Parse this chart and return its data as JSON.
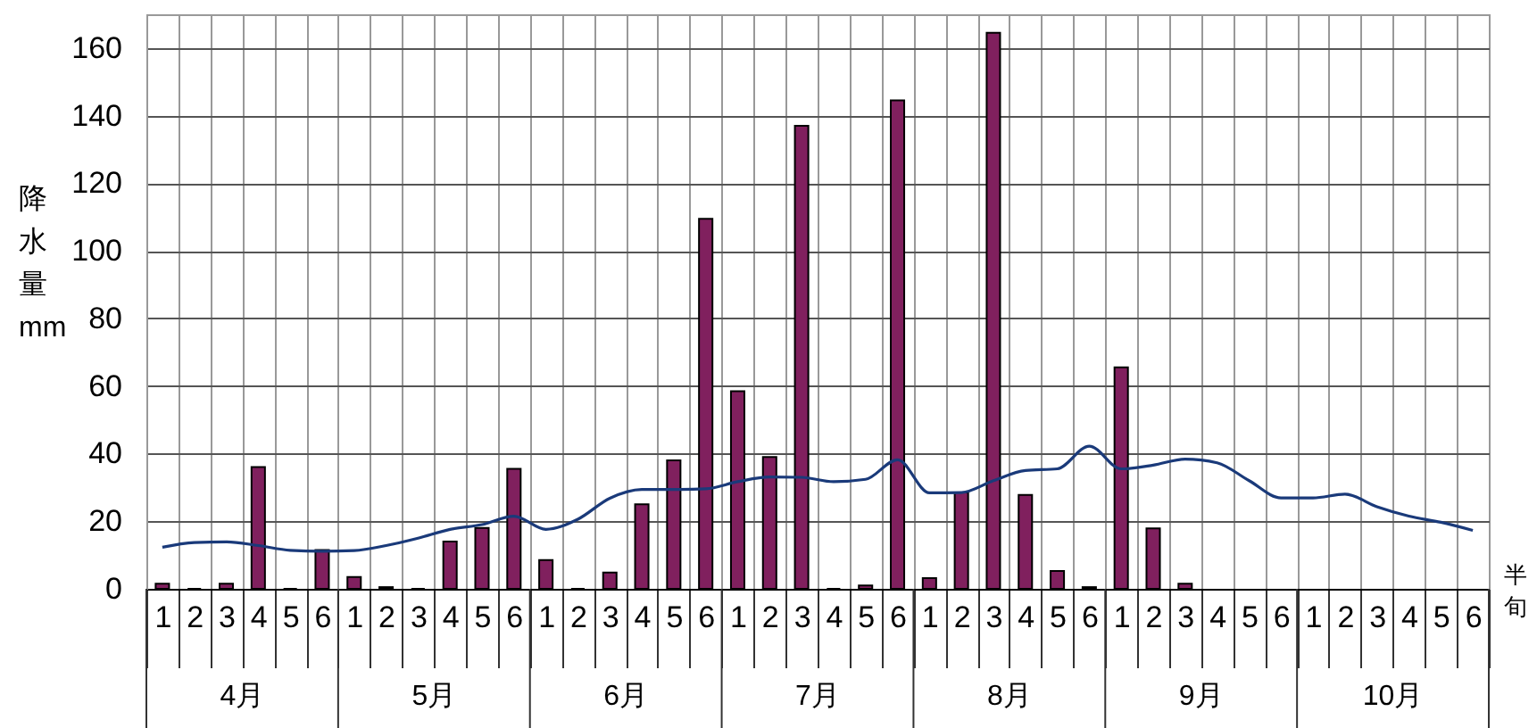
{
  "chart_data": {
    "type": "bar",
    "ylabel": "降水量 mm",
    "xlabel": "半旬",
    "categories": [
      "1",
      "2",
      "3",
      "4",
      "5",
      "6",
      "1",
      "2",
      "3",
      "4",
      "5",
      "6",
      "1",
      "2",
      "3",
      "4",
      "5",
      "6",
      "1",
      "2",
      "3",
      "4",
      "5",
      "6",
      "1",
      "2",
      "3",
      "4",
      "5",
      "6",
      "1",
      "2",
      "3",
      "4",
      "5",
      "6",
      "1",
      "2",
      "3",
      "4",
      "5",
      "6"
    ],
    "series": [
      {
        "color": "#80205e",
        "values": [
          1.5,
          0,
          1.5,
          36,
          0,
          11.5,
          3.5,
          0.5,
          0,
          14,
          18,
          35.5,
          8.5,
          0,
          4.8,
          25,
          38,
          109.5,
          58.5,
          39,
          137,
          0,
          1,
          144.5,
          3.2,
          28.5,
          164.5,
          27.8,
          5.3,
          0.5,
          65.5,
          17.9,
          1.5,
          null,
          null,
          null,
          null,
          null,
          null,
          null,
          null,
          null
        ]
      },
      {
        "type": "line",
        "color": "#1a3a7a",
        "values": [
          12.3,
          13.7,
          13.9,
          12.8,
          11.4,
          11.1,
          11.3,
          12.8,
          15,
          17.6,
          19,
          21.5,
          17.6,
          20.6,
          26.8,
          29.4,
          29.4,
          29.6,
          31.7,
          33.1,
          33,
          31.7,
          32.4,
          38.2,
          28.4,
          28.5,
          32,
          35,
          35.5,
          42.2,
          35.5,
          36.6,
          38.4,
          37.3,
          32,
          26.9,
          26.9,
          28,
          24.3,
          21.5,
          19.7,
          17.3
        ]
      }
    ],
    "ylim": [
      0,
      170
    ],
    "yticks": [
      0,
      20,
      40,
      60,
      80,
      100,
      120,
      140,
      160
    ],
    "grid": true,
    "annotations": [
      "4月",
      "5月",
      "6月",
      "7月",
      "8月",
      "9月",
      "10月"
    ]
  }
}
